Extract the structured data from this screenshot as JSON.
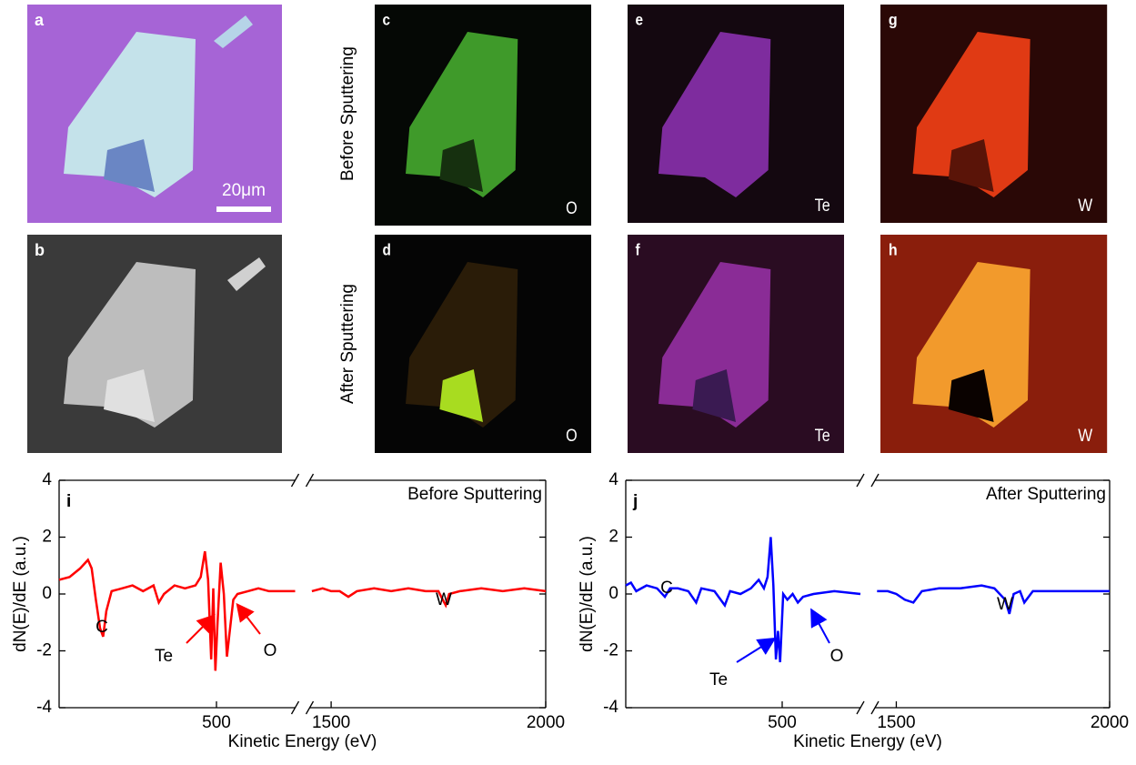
{
  "panels": [
    {
      "letter": "a",
      "scale_bar": "20μm"
    },
    {
      "letter": "b"
    },
    {
      "letter": "c",
      "element": "O"
    },
    {
      "letter": "d",
      "element": "O"
    },
    {
      "letter": "e",
      "element": "Te"
    },
    {
      "letter": "f",
      "element": "Te"
    },
    {
      "letter": "g",
      "element": "W"
    },
    {
      "letter": "h",
      "element": "W"
    }
  ],
  "row_labels": [
    "Before Sputtering",
    "After Sputtering"
  ],
  "chart_data": [
    {
      "type": "line",
      "panel": "i",
      "title": "Before Sputtering",
      "color": "#ff0000",
      "xlabel": "Kinetic Energy (eV)",
      "ylabel": "dN(E)/dE (a.u.)",
      "ylim": [
        -4,
        4
      ],
      "yticks": [
        -4,
        -2,
        0,
        2,
        4
      ],
      "annotations": [
        "C",
        "Te",
        "O",
        "W"
      ],
      "segments": [
        {
          "xlim": [
            200,
            650
          ],
          "xticks": [
            500
          ],
          "x": [
            200,
            220,
            240,
            255,
            262,
            270,
            278,
            284,
            290,
            300,
            320,
            340,
            360,
            380,
            390,
            400,
            420,
            440,
            460,
            470,
            478,
            484,
            490,
            494,
            498,
            502,
            508,
            514,
            520,
            526,
            532,
            540,
            560,
            580,
            600,
            620,
            640,
            650
          ],
          "values": [
            0.5,
            0.6,
            0.9,
            1.2,
            0.9,
            -0.2,
            -1.2,
            -1.5,
            -0.6,
            0.1,
            0.2,
            0.3,
            0.1,
            0.3,
            -0.3,
            0.0,
            0.3,
            0.2,
            0.3,
            0.6,
            1.5,
            0.5,
            -2.3,
            0.2,
            -2.7,
            -1.0,
            1.1,
            0.0,
            -2.2,
            -1.2,
            -0.2,
            0.0,
            0.1,
            0.2,
            0.1,
            0.1,
            0.1,
            0.1
          ]
        },
        {
          "xlim": [
            1450,
            2000
          ],
          "xticks": [
            1500,
            2000
          ],
          "x": [
            1455,
            1480,
            1500,
            1520,
            1540,
            1560,
            1600,
            1640,
            1680,
            1720,
            1750,
            1760,
            1767,
            1775,
            1800,
            1850,
            1900,
            1950,
            2000
          ],
          "values": [
            0.1,
            0.2,
            0.1,
            0.1,
            -0.1,
            0.1,
            0.2,
            0.1,
            0.2,
            0.1,
            0.1,
            -0.2,
            -0.4,
            0.0,
            0.1,
            0.2,
            0.1,
            0.2,
            0.1
          ]
        }
      ]
    },
    {
      "type": "line",
      "panel": "j",
      "title": "After Sputtering",
      "color": "#0000ff",
      "xlabel": "Kinetic Energy (eV)",
      "ylabel": "dN(E)/dE (a.u.)",
      "ylim": [
        -4,
        4
      ],
      "yticks": [
        -4,
        -2,
        0,
        2,
        4
      ],
      "annotations": [
        "C",
        "Te",
        "O",
        "W"
      ],
      "segments": [
        {
          "xlim": [
            200,
            650
          ],
          "xticks": [
            500
          ],
          "x": [
            200,
            210,
            220,
            240,
            260,
            275,
            285,
            300,
            320,
            335,
            345,
            370,
            390,
            400,
            420,
            440,
            455,
            465,
            472,
            478,
            483,
            488,
            492,
            496,
            502,
            510,
            520,
            530,
            540,
            560,
            600,
            650
          ],
          "values": [
            0.3,
            0.4,
            0.1,
            0.3,
            0.2,
            -0.1,
            0.2,
            0.2,
            0.1,
            -0.3,
            0.2,
            0.1,
            -0.4,
            0.1,
            0.0,
            0.2,
            0.5,
            0.2,
            0.6,
            2.0,
            0.3,
            -2.3,
            -1.3,
            -2.4,
            0.0,
            -0.2,
            0.0,
            -0.3,
            -0.1,
            0.0,
            0.1,
            0.0
          ]
        },
        {
          "xlim": [
            1450,
            2000
          ],
          "xticks": [
            1500,
            2000
          ],
          "x": [
            1455,
            1480,
            1500,
            1520,
            1540,
            1560,
            1600,
            1650,
            1700,
            1730,
            1755,
            1765,
            1775,
            1790,
            1800,
            1820,
            1900,
            2000
          ],
          "values": [
            0.1,
            0.1,
            0.0,
            -0.2,
            -0.3,
            0.1,
            0.2,
            0.2,
            0.3,
            0.2,
            -0.2,
            -0.7,
            0.0,
            0.1,
            -0.3,
            0.1,
            0.1,
            0.1
          ]
        }
      ]
    }
  ]
}
